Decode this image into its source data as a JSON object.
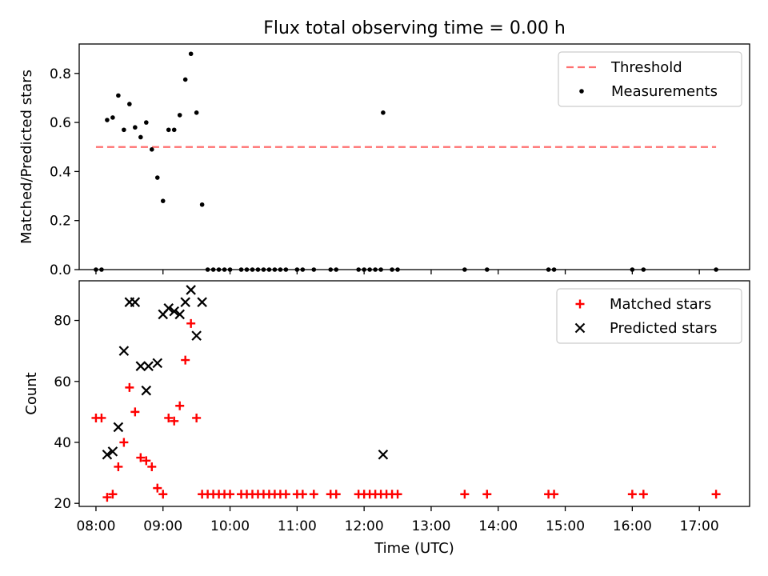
{
  "chart_data": {
    "type": "scatter",
    "title": "Flux total observing time = 0.00 h",
    "xlabel": "Time (UTC)",
    "x_ticks": [
      "08:00",
      "09:00",
      "10:00",
      "11:00",
      "12:00",
      "13:00",
      "14:00",
      "15:00",
      "16:00",
      "17:00"
    ],
    "xlim": [
      "07:45",
      "17:45"
    ],
    "panels": [
      {
        "ylabel": "Matched/Predicted stars",
        "ylim": [
          0,
          0.92
        ],
        "y_ticks": [
          0.0,
          0.2,
          0.4,
          0.6,
          0.8
        ],
        "y_tick_labels": [
          "0.0",
          "0.2",
          "0.4",
          "0.6",
          "0.8"
        ],
        "legend": {
          "placement": "upper right",
          "entries": [
            "Threshold",
            "Measurements"
          ]
        },
        "threshold": {
          "name": "Threshold",
          "value": 0.5,
          "x_range": [
            "08:00",
            "17:15"
          ],
          "color": "#ff7070",
          "style": "dashed"
        },
        "series": [
          {
            "name": "Measurements",
            "marker": "dot",
            "color": "#000000",
            "points": [
              [
                "08:00",
                0.0
              ],
              [
                "08:05",
                0.0
              ],
              [
                "08:10",
                0.61
              ],
              [
                "08:15",
                0.62
              ],
              [
                "08:20",
                0.71
              ],
              [
                "08:25",
                0.57
              ],
              [
                "08:30",
                0.675
              ],
              [
                "08:35",
                0.58
              ],
              [
                "08:40",
                0.54
              ],
              [
                "08:45",
                0.6
              ],
              [
                "08:50",
                0.49
              ],
              [
                "08:55",
                0.375
              ],
              [
                "09:00",
                0.28
              ],
              [
                "09:05",
                0.57
              ],
              [
                "09:10",
                0.57
              ],
              [
                "09:15",
                0.63
              ],
              [
                "09:20",
                0.775
              ],
              [
                "09:25",
                0.88
              ],
              [
                "09:30",
                0.64
              ],
              [
                "09:35",
                0.265
              ],
              [
                "09:40",
                0.0
              ],
              [
                "09:45",
                0.0
              ],
              [
                "09:50",
                0.0
              ],
              [
                "09:55",
                0.0
              ],
              [
                "10:00",
                0.0
              ],
              [
                "10:10",
                0.0
              ],
              [
                "10:15",
                0.0
              ],
              [
                "10:20",
                0.0
              ],
              [
                "10:25",
                0.0
              ],
              [
                "10:30",
                0.0
              ],
              [
                "10:35",
                0.0
              ],
              [
                "10:40",
                0.0
              ],
              [
                "10:45",
                0.0
              ],
              [
                "10:50",
                0.0
              ],
              [
                "11:00",
                0.0
              ],
              [
                "11:05",
                0.0
              ],
              [
                "11:15",
                0.0
              ],
              [
                "11:30",
                0.0
              ],
              [
                "11:35",
                0.0
              ],
              [
                "11:55",
                0.0
              ],
              [
                "12:00",
                0.0
              ],
              [
                "12:05",
                0.0
              ],
              [
                "12:10",
                0.0
              ],
              [
                "12:15",
                0.0
              ],
              [
                "12:17",
                0.64
              ],
              [
                "12:25",
                0.0
              ],
              [
                "12:30",
                0.0
              ],
              [
                "13:30",
                0.0
              ],
              [
                "13:50",
                0.0
              ],
              [
                "14:45",
                0.0
              ],
              [
                "14:50",
                0.0
              ],
              [
                "16:00",
                0.0
              ],
              [
                "16:10",
                0.0
              ],
              [
                "17:15",
                0.0
              ]
            ]
          }
        ]
      },
      {
        "ylabel": "Count",
        "ylim": [
          19,
          93
        ],
        "y_ticks": [
          20,
          40,
          60,
          80
        ],
        "y_tick_labels": [
          "20",
          "40",
          "60",
          "80"
        ],
        "legend": {
          "placement": "upper right",
          "entries": [
            "Matched stars",
            "Predicted stars"
          ]
        },
        "series": [
          {
            "name": "Matched stars",
            "marker": "plus",
            "color": "#ff0000",
            "points": [
              [
                "08:00",
                48
              ],
              [
                "08:05",
                48
              ],
              [
                "08:10",
                22
              ],
              [
                "08:15",
                23
              ],
              [
                "08:20",
                32
              ],
              [
                "08:25",
                40
              ],
              [
                "08:30",
                58
              ],
              [
                "08:35",
                50
              ],
              [
                "08:40",
                35
              ],
              [
                "08:45",
                34
              ],
              [
                "08:50",
                32
              ],
              [
                "08:55",
                25
              ],
              [
                "09:00",
                23
              ],
              [
                "09:05",
                48
              ],
              [
                "09:10",
                47
              ],
              [
                "09:15",
                52
              ],
              [
                "09:20",
                67
              ],
              [
                "09:25",
                79
              ],
              [
                "09:30",
                48
              ],
              [
                "09:35",
                23
              ],
              [
                "09:40",
                23
              ],
              [
                "09:45",
                23
              ],
              [
                "09:50",
                23
              ],
              [
                "09:55",
                23
              ],
              [
                "10:00",
                23
              ],
              [
                "10:10",
                23
              ],
              [
                "10:15",
                23
              ],
              [
                "10:20",
                23
              ],
              [
                "10:25",
                23
              ],
              [
                "10:30",
                23
              ],
              [
                "10:35",
                23
              ],
              [
                "10:40",
                23
              ],
              [
                "10:45",
                23
              ],
              [
                "10:50",
                23
              ],
              [
                "11:00",
                23
              ],
              [
                "11:05",
                23
              ],
              [
                "11:15",
                23
              ],
              [
                "11:30",
                23
              ],
              [
                "11:35",
                23
              ],
              [
                "11:55",
                23
              ],
              [
                "12:00",
                23
              ],
              [
                "12:05",
                23
              ],
              [
                "12:10",
                23
              ],
              [
                "12:15",
                23
              ],
              [
                "12:20",
                23
              ],
              [
                "12:25",
                23
              ],
              [
                "12:30",
                23
              ],
              [
                "13:30",
                23
              ],
              [
                "13:50",
                23
              ],
              [
                "14:45",
                23
              ],
              [
                "14:50",
                23
              ],
              [
                "16:00",
                23
              ],
              [
                "16:10",
                23
              ],
              [
                "17:15",
                23
              ]
            ]
          },
          {
            "name": "Predicted stars",
            "marker": "x",
            "color": "#000000",
            "points": [
              [
                "08:10",
                36
              ],
              [
                "08:15",
                37
              ],
              [
                "08:20",
                45
              ],
              [
                "08:25",
                70
              ],
              [
                "08:30",
                86
              ],
              [
                "08:35",
                86
              ],
              [
                "08:40",
                65
              ],
              [
                "08:45",
                57
              ],
              [
                "08:47",
                65
              ],
              [
                "08:55",
                66
              ],
              [
                "09:00",
                82
              ],
              [
                "09:05",
                84
              ],
              [
                "09:10",
                83
              ],
              [
                "09:15",
                82
              ],
              [
                "09:20",
                86
              ],
              [
                "09:25",
                90
              ],
              [
                "09:30",
                75
              ],
              [
                "09:35",
                86
              ],
              [
                "12:17",
                36
              ]
            ]
          }
        ]
      }
    ]
  }
}
